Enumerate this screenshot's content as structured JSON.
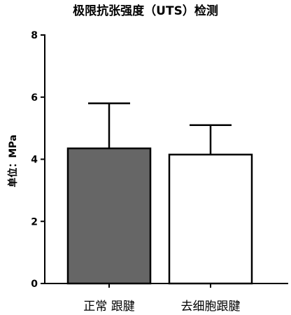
{
  "chart_data": {
    "type": "bar",
    "title": "极限抗张强度（UTS）检测",
    "ylabel": "单位：MPa",
    "xlabel": "",
    "categories": [
      "正常 跟腱",
      "去细胞跟腱"
    ],
    "values": [
      4.35,
      4.15
    ],
    "error_upper": [
      5.8,
      5.1
    ],
    "bar_fills": [
      "#666666",
      "#ffffff"
    ],
    "ylim": [
      0,
      8
    ],
    "yticks": [
      "0",
      "2",
      "4",
      "6",
      "8"
    ],
    "grid": false,
    "legend": "none"
  }
}
